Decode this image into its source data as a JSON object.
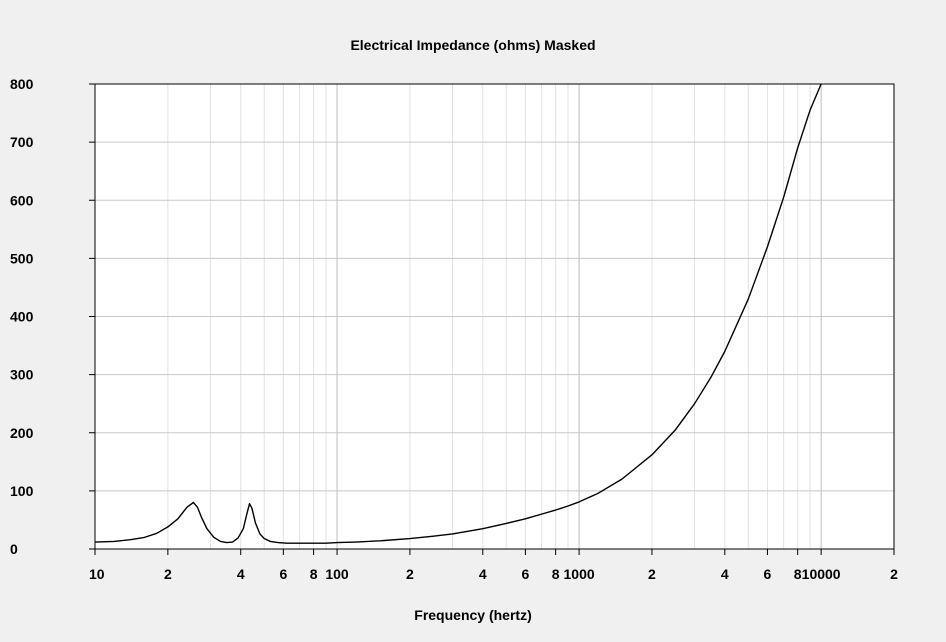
{
  "chart_data": {
    "type": "line",
    "title": "Electrical Impedance (ohms)   Masked",
    "xlabel": "Frequency (hertz)",
    "ylabel": "",
    "x_scale": "log",
    "xlim": [
      10,
      20000
    ],
    "ylim": [
      0,
      800
    ],
    "grid": true,
    "y_ticks": [
      0,
      100,
      200,
      300,
      400,
      500,
      600,
      700,
      800
    ],
    "x_ticks": [
      {
        "value": 10,
        "label": "10"
      },
      {
        "value": 20,
        "label": "2"
      },
      {
        "value": 40,
        "label": "4"
      },
      {
        "value": 60,
        "label": "6"
      },
      {
        "value": 80,
        "label": "8"
      },
      {
        "value": 100,
        "label": "100"
      },
      {
        "value": 200,
        "label": "2"
      },
      {
        "value": 400,
        "label": "4"
      },
      {
        "value": 600,
        "label": "6"
      },
      {
        "value": 800,
        "label": "8"
      },
      {
        "value": 1000,
        "label": "1000"
      },
      {
        "value": 2000,
        "label": "2"
      },
      {
        "value": 4000,
        "label": "4"
      },
      {
        "value": 6000,
        "label": "6"
      },
      {
        "value": 8000,
        "label": "8"
      },
      {
        "value": 10000,
        "label": "10000"
      },
      {
        "value": 20000,
        "label": "2"
      }
    ],
    "series": [
      {
        "color": "#000000",
        "x": [
          10,
          12,
          14,
          16,
          18,
          20,
          22,
          24,
          25.5,
          26.5,
          27.5,
          29,
          31,
          33,
          35,
          37,
          39,
          41,
          42.5,
          43.5,
          44.5,
          46,
          48,
          50,
          53,
          57,
          62,
          70,
          80,
          90,
          100,
          120,
          150,
          200,
          250,
          300,
          400,
          500,
          600,
          700,
          800,
          900,
          1000,
          1200,
          1500,
          2000,
          2500,
          3000,
          3500,
          4000,
          5000,
          6000,
          7000,
          8000,
          9000,
          10000
        ],
        "y": [
          12,
          13,
          16,
          20,
          27,
          38,
          52,
          72,
          80,
          72,
          55,
          35,
          20,
          13,
          11,
          12,
          19,
          35,
          62,
          78,
          70,
          45,
          26,
          18,
          13,
          11,
          10,
          10,
          10,
          10,
          11,
          12,
          14,
          18,
          22,
          26,
          35,
          44,
          52,
          60,
          67,
          74,
          81,
          96,
          120,
          162,
          205,
          250,
          295,
          340,
          430,
          520,
          605,
          690,
          755,
          800
        ]
      }
    ]
  }
}
